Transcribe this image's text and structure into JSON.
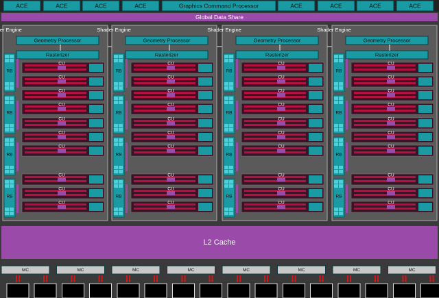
{
  "top": {
    "aces_left": [
      "ACE",
      "ACE",
      "ACE",
      "ACE"
    ],
    "command_processor": "Graphics Command Processor",
    "aces_right": [
      "ACE",
      "ACE",
      "ACE",
      "ACE"
    ]
  },
  "global_data_share": "Global Data Share",
  "engines": [
    {
      "title": "Shader Engine",
      "geometry": "Geometry Processor",
      "rasterizer": "Rasterizer",
      "rbs": [
        "RB",
        "RB",
        "RB",
        "RB"
      ],
      "cus": [
        "CU",
        "CU",
        "CU",
        "CU",
        "CU",
        "CU",
        "CU",
        "CU",
        "CU",
        "CU"
      ]
    },
    {
      "title": "Shader Engine",
      "geometry": "Geometry Processor",
      "rasterizer": "Rasterizer",
      "rbs": [
        "RB",
        "RB",
        "RB",
        "RB"
      ],
      "cus": [
        "CU",
        "CU",
        "CU",
        "CU",
        "CU",
        "CU",
        "CU",
        "CU",
        "CU",
        "CU"
      ]
    },
    {
      "title": "Shader Engine",
      "geometry": "Geometry Processor",
      "rasterizer": "Rasterizer",
      "rbs": [
        "RB",
        "RB",
        "RB",
        "RB"
      ],
      "cus": [
        "CU",
        "CU",
        "CU",
        "CU",
        "CU",
        "CU",
        "CU",
        "CU",
        "CU",
        "CU"
      ]
    },
    {
      "title": "Shader Engine",
      "geometry": "Geometry Processor",
      "rasterizer": "Rasterizer",
      "rbs": [
        "RB",
        "RB",
        "RB",
        "RB"
      ],
      "cus": [
        "CU",
        "CU",
        "CU",
        "CU",
        "CU",
        "CU",
        "CU",
        "CU",
        "CU",
        "CU"
      ]
    }
  ],
  "l2_cache": "L2 Cache",
  "memory_controllers": [
    "MC",
    "MC",
    "MC",
    "MC",
    "MC",
    "MC",
    "MC",
    "MC"
  ]
}
